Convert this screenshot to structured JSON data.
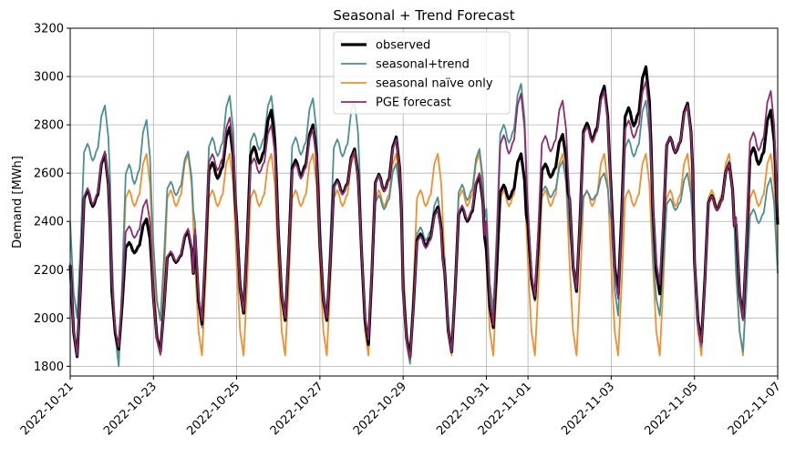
{
  "chart_data": {
    "type": "line",
    "title": "Seasonal + Trend Forecast",
    "xlabel": "",
    "ylabel": "Demand [MWh]",
    "ylim": [
      1760,
      3200
    ],
    "yticks": [
      1800,
      2000,
      2200,
      2400,
      2600,
      2800,
      3000,
      3200
    ],
    "xlim": [
      "2022-10-21",
      "2022-11-07"
    ],
    "xticks": [
      "2022-10-21",
      "2022-10-23",
      "2022-10-25",
      "2022-10-27",
      "2022-10-29",
      "2022-10-31",
      "2022-11-01",
      "2022-11-03",
      "2022-11-05",
      "2022-11-07"
    ],
    "grid": true,
    "legend_position": "top-center",
    "daily_profile": {
      "note_shape": "daily load curve with overnight trough at about 04:00 and evening peak",
      "days": [
        "2022-10-21",
        "2022-10-22",
        "2022-10-23",
        "2022-10-24",
        "2022-10-25",
        "2022-10-26",
        "2022-10-27",
        "2022-10-28",
        "2022-10-29",
        "2022-10-30",
        "2022-10-31",
        "2022-11-01",
        "2022-11-02",
        "2022-11-03",
        "2022-11-04",
        "2022-11-05",
        "2022-11-06"
      ]
    },
    "series": [
      {
        "name": "observed",
        "color": "#000000",
        "width": 3.2,
        "day_trough": [
          1840,
          1870,
          1860,
          1975,
          2020,
          1990,
          1990,
          1890,
          1840,
          1860,
          1960,
          2080,
          2110,
          2100,
          2100,
          1900,
          2000
        ],
        "day_peak": [
          2680,
          2410,
          2360,
          2790,
          2860,
          2800,
          2700,
          2750,
          2460,
          2590,
          2680,
          2760,
          2960,
          3040,
          2890,
          2640,
          2860
        ]
      },
      {
        "name": "seasonal+trend",
        "color": "#4a8f91",
        "width": 1.8,
        "day_trough": [
          2000,
          1800,
          1990,
          1960,
          2060,
          2010,
          2010,
          1910,
          1810,
          1880,
          2030,
          2070,
          2170,
          2010,
          2010,
          1880,
          1860
        ],
        "day_peak": [
          2880,
          2820,
          2690,
          2920,
          2920,
          2910,
          2900,
          2640,
          2500,
          2700,
          2970,
          2650,
          2600,
          2900,
          2600,
          2650,
          2580
        ]
      },
      {
        "name": "seasonal naïve only",
        "color": "#f28e2b",
        "width": 1.8,
        "day_trough": [
          1840,
          1845,
          1845,
          1845,
          1845,
          1845,
          1845,
          1845,
          1845,
          1845,
          1845,
          1845,
          1845,
          1845,
          1845,
          1845,
          1845
        ],
        "day_peak": [
          2680,
          2680,
          2680,
          2680,
          2680,
          2680,
          2680,
          2680,
          2680,
          2680,
          2680,
          2680,
          2680,
          2680,
          2680,
          2680,
          2680
        ]
      },
      {
        "name": "PGE forecast",
        "color": "#8e2a6e",
        "width": 1.8,
        "day_trough": [
          1845,
          1880,
          1850,
          1990,
          2030,
          2000,
          2000,
          1910,
          1830,
          1860,
          1970,
          2090,
          2120,
          2080,
          2140,
          1890,
          1990
        ],
        "day_peak": [
          2690,
          2490,
          2370,
          2830,
          2800,
          2780,
          2690,
          2740,
          2450,
          2600,
          2930,
          2900,
          2940,
          2980,
          2880,
          2640,
          2940
        ]
      }
    ]
  }
}
